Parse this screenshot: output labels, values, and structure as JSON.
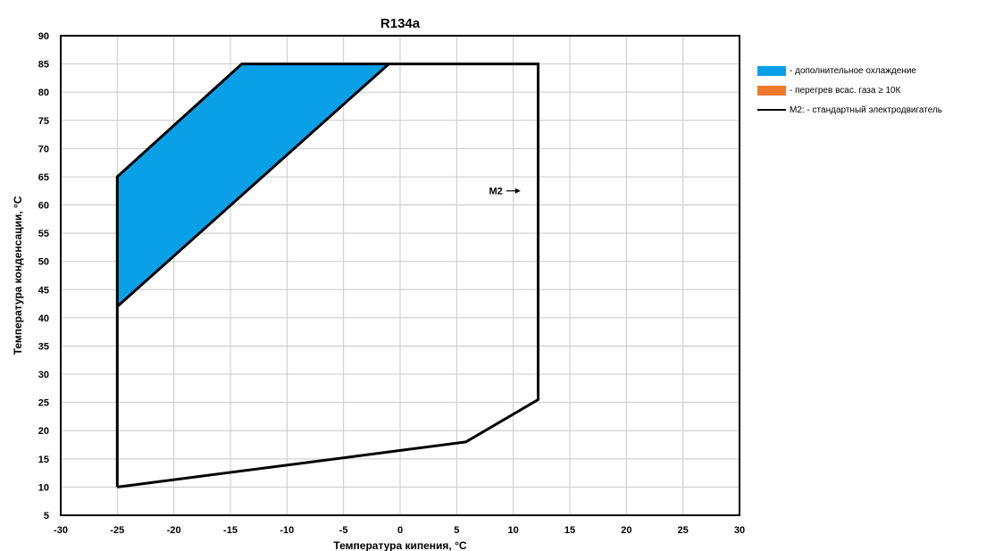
{
  "chart_data": {
    "type": "area",
    "title": "R134a",
    "xlabel": "Температура кипения, °C",
    "ylabel": "Температура конденсации, °C",
    "xlim": [
      -30,
      30
    ],
    "ylim": [
      5,
      90
    ],
    "x_ticks": [
      -30,
      -25,
      -20,
      -15,
      -10,
      -5,
      0,
      5,
      10,
      15,
      20,
      25,
      30
    ],
    "y_ticks": [
      5,
      10,
      15,
      20,
      25,
      30,
      35,
      40,
      45,
      50,
      55,
      60,
      65,
      70,
      75,
      80,
      85,
      90
    ],
    "grid": true,
    "legend_position": "right",
    "series": [
      {
        "name": "- дополнительное охлаждение",
        "kind": "filled-area",
        "color": "#0aa0e8",
        "points": [
          [
            -25,
            65
          ],
          [
            -14,
            85
          ],
          [
            -1,
            85
          ],
          [
            -25,
            42
          ]
        ]
      },
      {
        "name": "- перегрев всас. газа ≥ 10К",
        "kind": "filled-area",
        "color": "#f0782a",
        "points": []
      },
      {
        "name": "M2: - стандартный электродвигатель",
        "kind": "envelope-line",
        "color": "#000000",
        "points": [
          [
            -25,
            10
          ],
          [
            -25,
            65
          ],
          [
            -14,
            85
          ],
          [
            12.2,
            85
          ],
          [
            12.2,
            25.5
          ],
          [
            5.8,
            18
          ],
          [
            -25,
            10
          ]
        ]
      }
    ],
    "annotations": [
      {
        "text": "M2",
        "x": 10.8,
        "y": 62.5,
        "arrow": "right"
      }
    ]
  }
}
